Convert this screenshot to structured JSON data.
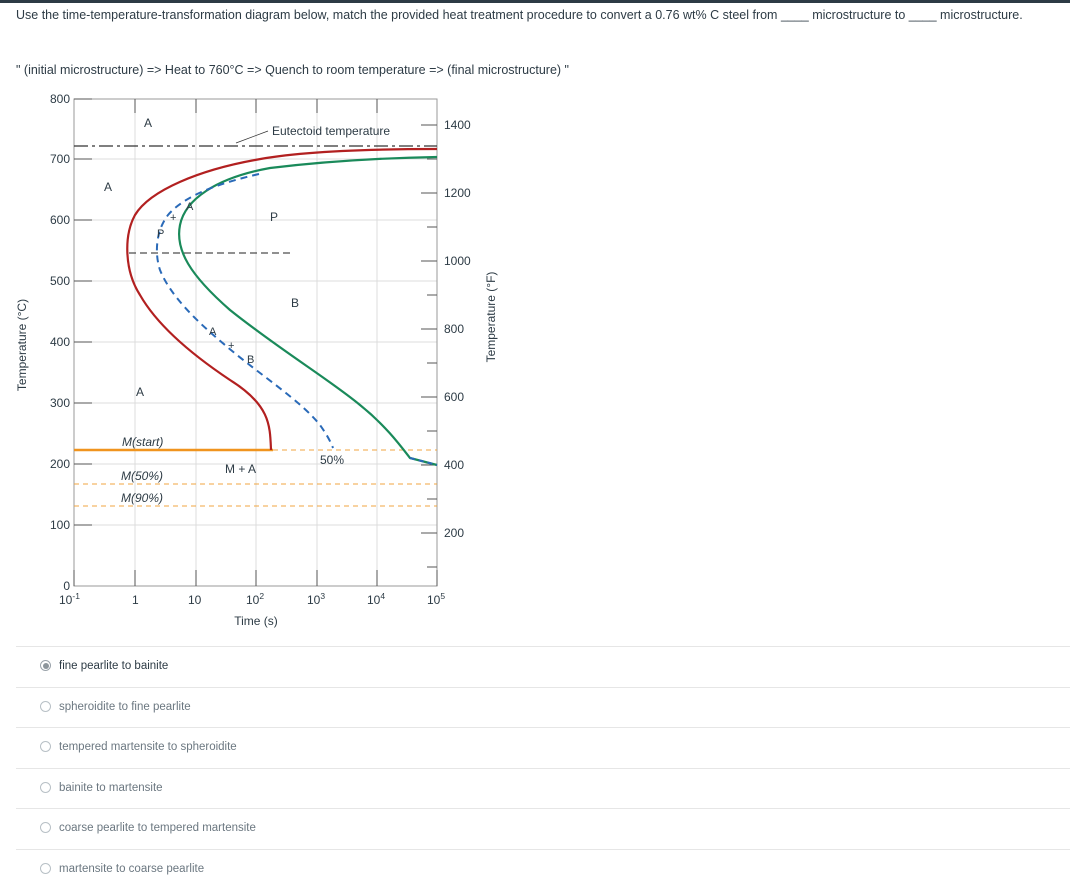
{
  "question": {
    "text": "Use the time-temperature-transformation diagram below, match the provided heat treatment procedure to convert a 0.76 wt% C steel from ____ microstructure to ____ microstructure.",
    "procedure": "\" (initial microstructure) => Heat to 760°C => Quench to room temperature => (final microstructure) \""
  },
  "diagram": {
    "left_axis_label": "Temperature (°C)",
    "right_axis_label": "Temperature (°F)",
    "x_axis_label": "Time (s)",
    "celsius_ticks": [
      "800",
      "700",
      "600",
      "500",
      "400",
      "300",
      "200",
      "100",
      "0"
    ],
    "fahrenheit_ticks": [
      "1400",
      "1200",
      "1000",
      "800",
      "600",
      "400",
      "200"
    ],
    "time_ticks": [
      "10",
      "1",
      "10",
      "10",
      "10",
      "10",
      "10"
    ],
    "time_tick_exponents": [
      "-1",
      "",
      "",
      "2",
      "3",
      "4",
      "5"
    ],
    "eutectoid_label": "Eutectoid temperature",
    "region_labels": {
      "a_top": "A",
      "a_left": "A",
      "a_dash": "A",
      "p_small": "P",
      "p_region": "P",
      "b_region": "B",
      "a_mid": "A",
      "b_mid": "B",
      "a_low": "A",
      "m_start": "M(start)",
      "m_plus_a": "M + A",
      "fifty": "50%",
      "m50": "M(50%)",
      "m90": "M(90%)",
      "plus_1": "+",
      "plus_2": "+"
    },
    "colors": {
      "start_curve": "#b22020",
      "finish_curve": "#1a8a5a",
      "fifty_curve": "#2a6ab8",
      "martensite_start": "#f0941e",
      "martensite_dashed": "#f0a640"
    }
  },
  "answers": {
    "options": [
      {
        "label": "fine pearlite to bainite",
        "selected": true
      },
      {
        "label": "spheroidite to fine pearlite",
        "selected": false
      },
      {
        "label": "tempered martensite to spheroidite",
        "selected": false
      },
      {
        "label": "bainite to martensite",
        "selected": false
      },
      {
        "label": "coarse pearlite to tempered martensite",
        "selected": false
      },
      {
        "label": "martensite to coarse pearlite",
        "selected": false
      }
    ]
  }
}
